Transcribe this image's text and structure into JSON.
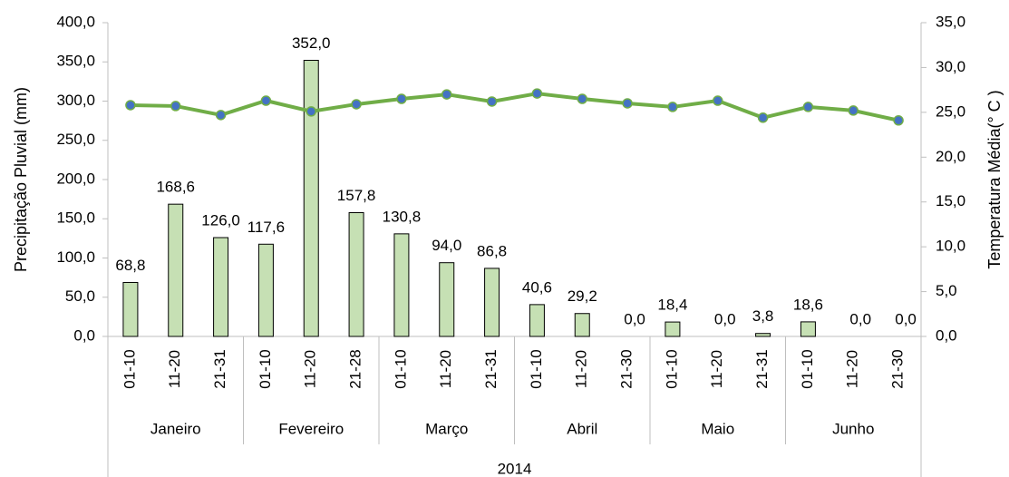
{
  "chart_data": {
    "type": "bar",
    "y_label": "Precipitação Pluvial (mm)",
    "y2_label": "Temperatura Média(° C )",
    "year": "2014",
    "groups": [
      {
        "name": "Janeiro",
        "categories": [
          "01-10",
          "11-20",
          "21-31"
        ]
      },
      {
        "name": "Fevereiro",
        "categories": [
          "01-10",
          "11-20",
          "21-28"
        ]
      },
      {
        "name": "Março",
        "categories": [
          "01-10",
          "11-20",
          "21-31"
        ]
      },
      {
        "name": "Abril",
        "categories": [
          "01-10",
          "11-20",
          "21-30"
        ]
      },
      {
        "name": "Maio",
        "categories": [
          "01-10",
          "11-20",
          "21-31"
        ]
      },
      {
        "name": "Junho",
        "categories": [
          "01-10",
          "11-20",
          "21-30"
        ]
      }
    ],
    "series": [
      {
        "type": "bar",
        "color": "#c6e0b4",
        "edge": "#000000",
        "axis": "y",
        "values": [
          68.8,
          168.6,
          126.0,
          117.6,
          352.0,
          157.8,
          130.8,
          94.0,
          86.8,
          40.6,
          29.2,
          0.0,
          18.4,
          0.0,
          3.8,
          18.6,
          0.0,
          0.0
        ],
        "value_labels": [
          "68,8",
          "168,6",
          "126,0",
          "117,6",
          "352,0",
          "157,8",
          "130,8",
          "94,0",
          "86,8",
          "40,6",
          "29,2",
          "0,0",
          "18,4",
          "0,0",
          "3,8",
          "18,6",
          "0,0",
          "0,0"
        ]
      },
      {
        "type": "line",
        "color": "#70ad47",
        "marker_color": "#4472c4",
        "axis": "y2",
        "values": [
          25.8,
          25.7,
          24.7,
          26.3,
          25.1,
          25.9,
          26.5,
          27.0,
          26.2,
          27.1,
          26.5,
          26.0,
          25.6,
          26.3,
          24.4,
          25.6,
          25.2,
          24.1
        ]
      }
    ],
    "ylim": [
      0,
      400
    ],
    "yticks": [
      {
        "value": 0,
        "label": "0,0"
      },
      {
        "value": 50,
        "label": "50,0"
      },
      {
        "value": 100,
        "label": "100,0"
      },
      {
        "value": 150,
        "label": "150,0"
      },
      {
        "value": 200,
        "label": "200,0"
      },
      {
        "value": 250,
        "label": "250,0"
      },
      {
        "value": 300,
        "label": "300,0"
      },
      {
        "value": 350,
        "label": "350,0"
      },
      {
        "value": 400,
        "label": "400,0"
      }
    ],
    "y2lim": [
      0,
      35
    ],
    "y2ticks": [
      {
        "value": 0,
        "label": "0,0"
      },
      {
        "value": 5,
        "label": "5,0"
      },
      {
        "value": 10,
        "label": "10,0"
      },
      {
        "value": 15,
        "label": "15,0"
      },
      {
        "value": 20,
        "label": "20,0"
      },
      {
        "value": 25,
        "label": "25,0"
      },
      {
        "value": 30,
        "label": "30,0"
      },
      {
        "value": 35,
        "label": "35,0"
      }
    ]
  }
}
